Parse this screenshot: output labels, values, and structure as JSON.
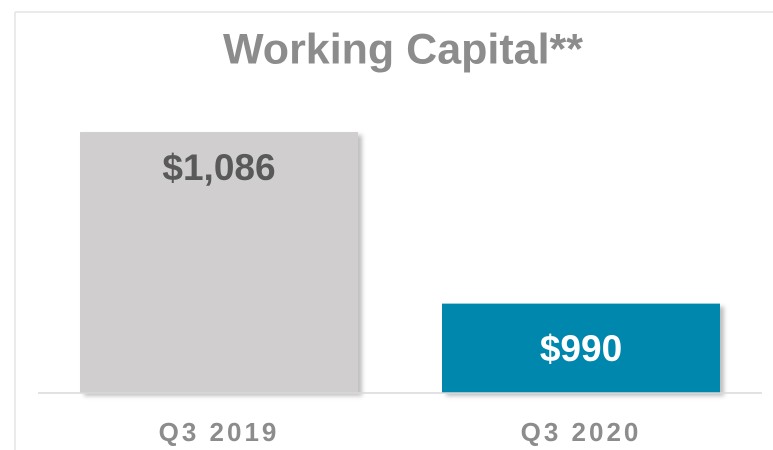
{
  "chart_data": {
    "type": "bar",
    "title": "Working Capital**",
    "categories": [
      "Q3 2019",
      "Q3 2020"
    ],
    "values": [
      1086,
      990
    ],
    "value_labels": [
      "$1,086",
      "$990"
    ],
    "colors": [
      "#d0cece",
      "#0087ad"
    ],
    "ylim": [
      940,
      1100
    ]
  }
}
